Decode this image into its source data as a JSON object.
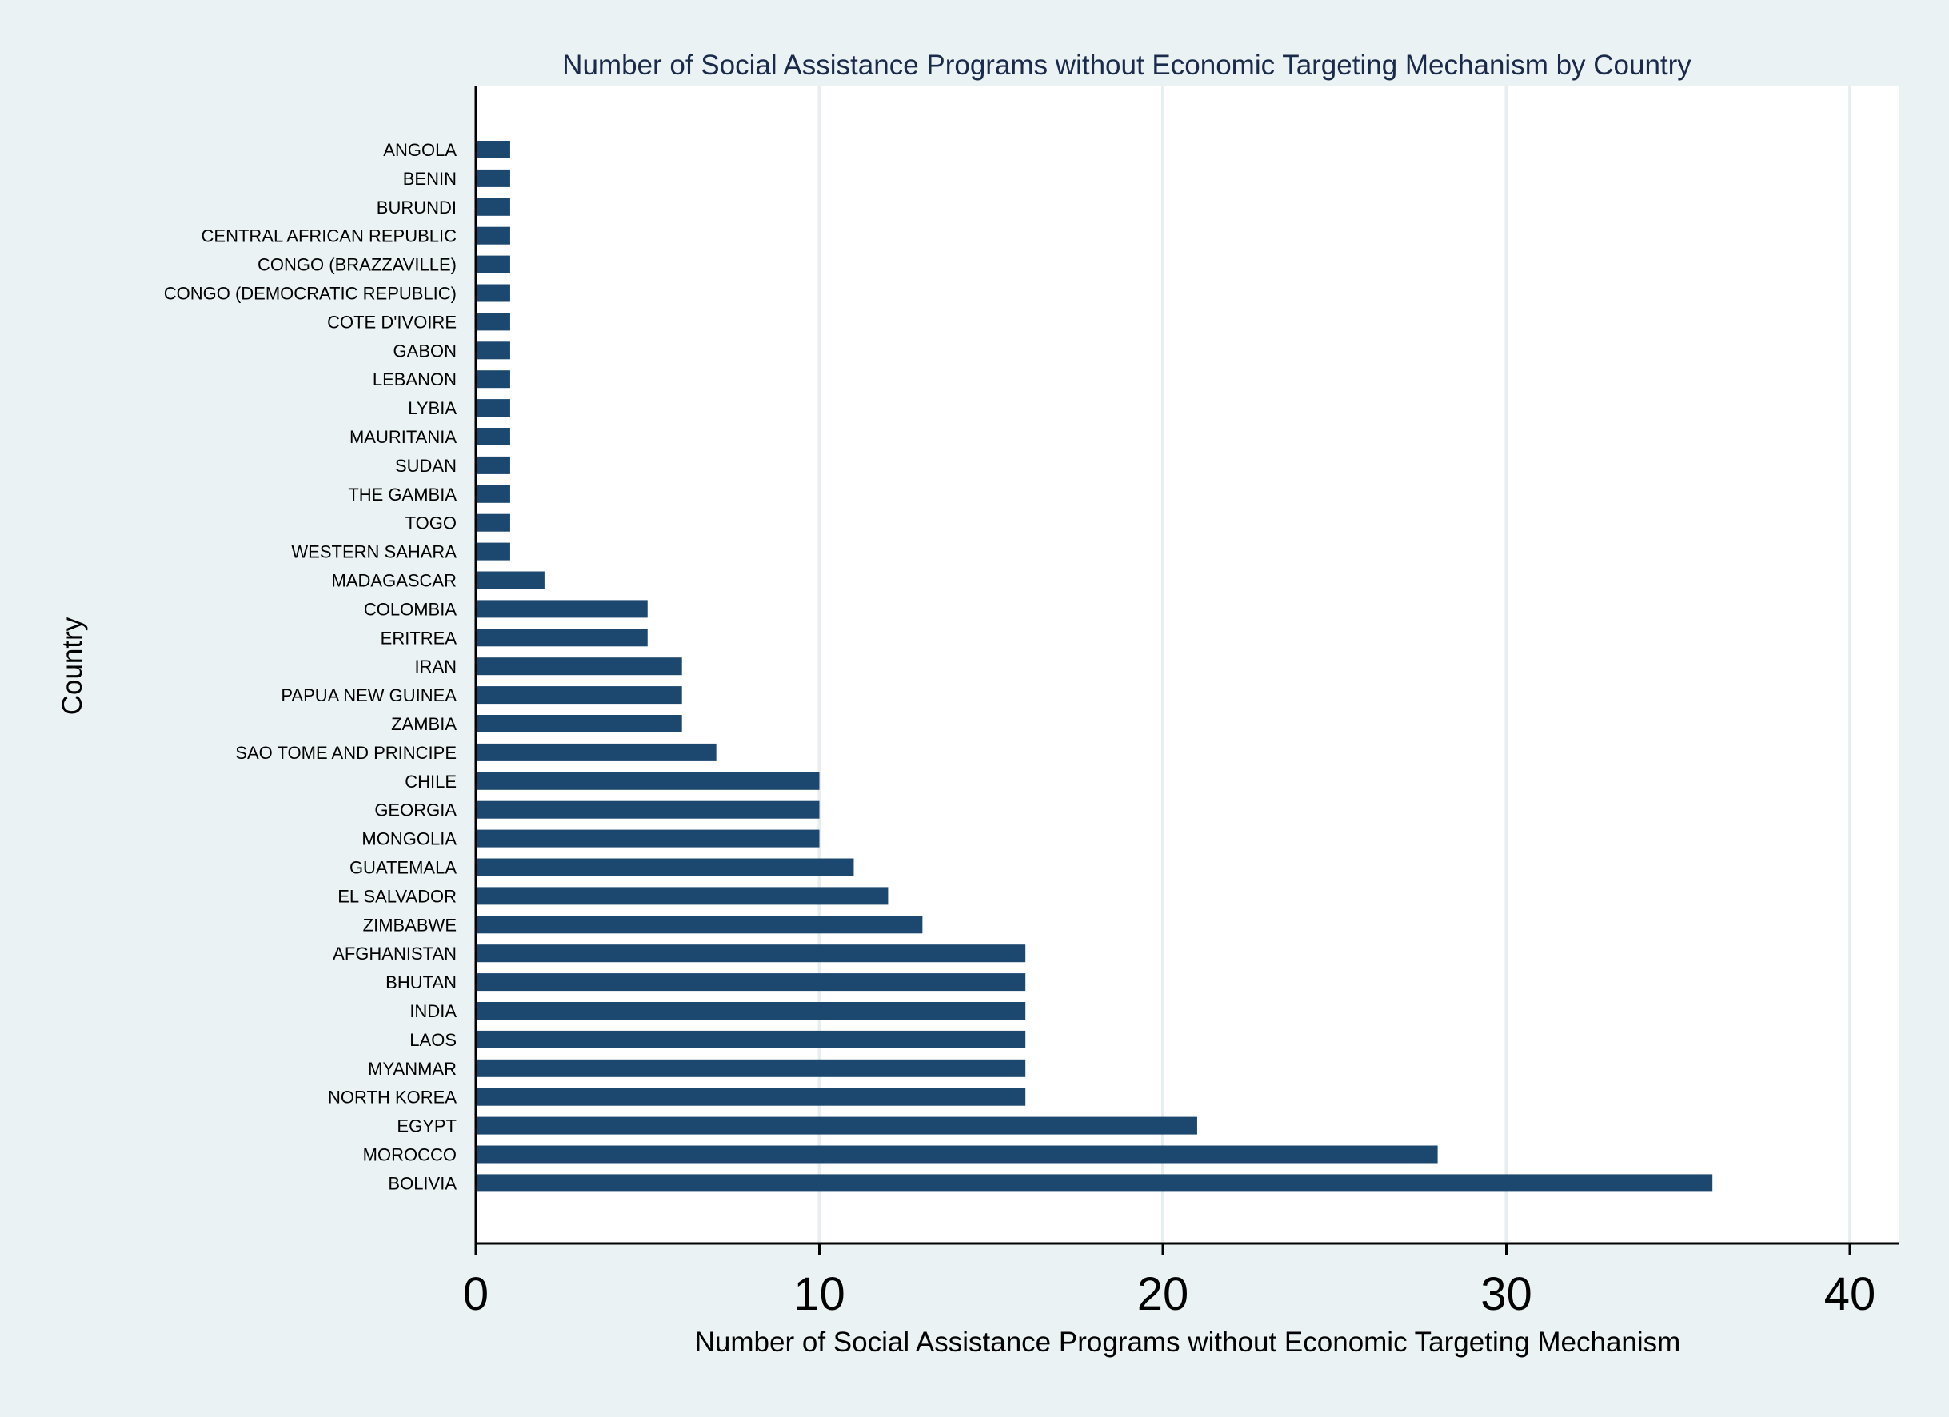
{
  "chart_data": {
    "type": "bar",
    "orientation": "horizontal",
    "title": "Number of Social Assistance Programs without Economic Targeting Mechanism by Country",
    "xlabel": "Number of Social Assistance Programs without Economic Targeting Mechanism",
    "ylabel": "Country",
    "xlim": [
      0,
      40
    ],
    "xticks": [
      0,
      10,
      20,
      30,
      40
    ],
    "grid": true,
    "categories": [
      "ANGOLA",
      "BENIN",
      "BURUNDI",
      "CENTRAL AFRICAN REPUBLIC",
      "CONGO (BRAZZAVILLE)",
      "CONGO (DEMOCRATIC REPUBLIC)",
      "COTE D'IVOIRE",
      "GABON",
      "LEBANON",
      "LYBIA",
      "MAURITANIA",
      "SUDAN",
      "THE GAMBIA",
      "TOGO",
      "WESTERN SAHARA",
      "MADAGASCAR",
      "COLOMBIA",
      "ERITREA",
      "IRAN",
      "PAPUA NEW GUINEA",
      "ZAMBIA",
      "SAO TOME AND PRINCIPE",
      "CHILE",
      "GEORGIA",
      "MONGOLIA",
      "GUATEMALA",
      "EL SALVADOR",
      "ZIMBABWE",
      "AFGHANISTAN",
      "BHUTAN",
      "INDIA",
      "LAOS",
      "MYANMAR",
      "NORTH KOREA",
      "EGYPT",
      "MOROCCO",
      "BOLIVIA"
    ],
    "values": [
      1,
      1,
      1,
      1,
      1,
      1,
      1,
      1,
      1,
      1,
      1,
      1,
      1,
      1,
      1,
      2,
      5,
      5,
      6,
      6,
      6,
      7,
      10,
      10,
      10,
      11,
      12,
      13,
      16,
      16,
      16,
      16,
      16,
      16,
      21,
      28,
      36
    ],
    "colors": {
      "background": "#eaf2f3",
      "plot_background": "#ffffff",
      "bar": "#1c4870",
      "grid": "#e6eef0",
      "title": "#1a2a4a",
      "axis": "#000000"
    }
  }
}
